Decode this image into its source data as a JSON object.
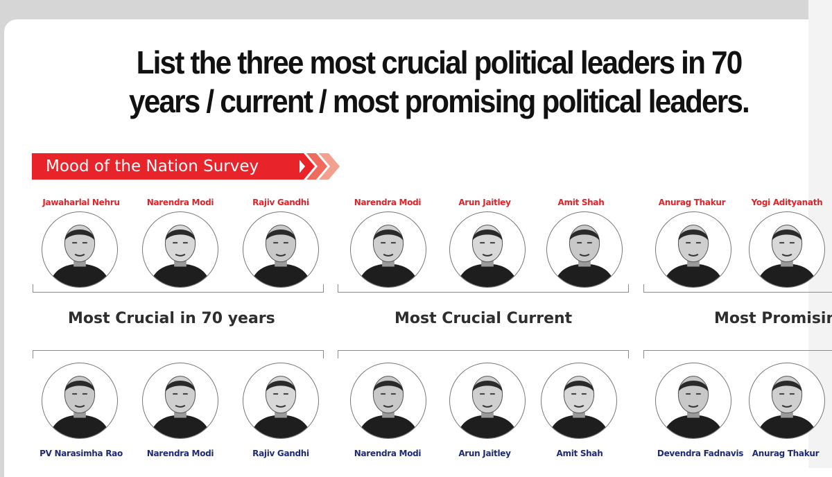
{
  "headline": {
    "line1": "List the three most crucial political leaders in 70",
    "line2": "years / current / most promising political leaders."
  },
  "banner": {
    "label": "Mood of the Nation Survey",
    "color": "#e8232a"
  },
  "categories": [
    {
      "label": "Most Crucial in 70 years"
    },
    {
      "label": "Most Crucial Current"
    },
    {
      "label": "Most Promisin"
    }
  ],
  "top_names": [
    "Jawaharlal Nehru",
    "Narendra Modi",
    "Rajiv Gandhi",
    "Narendra Modi",
    "Arun Jaitley",
    "Amit Shah",
    "Anurag Thakur",
    "Yogi Adityanath"
  ],
  "bottom_names": [
    "PV Narasimha Rao",
    "Narendra Modi",
    "Rajiv Gandhi",
    "Narendra Modi",
    "Arun Jaitley",
    "Amit Shah",
    "Devendra Fadnavis",
    "Anurag Thakur"
  ],
  "colors": {
    "top_name": "#e42227",
    "bottom_name": "#1d2a7a"
  }
}
